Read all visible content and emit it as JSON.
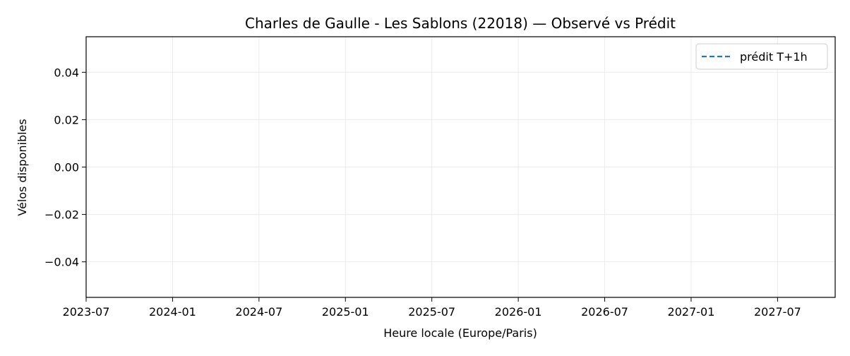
{
  "chart_data": {
    "type": "line",
    "title": "Charles de Gaulle - Les Sablons (22018) — Observé vs Prédit",
    "xlabel": "Heure locale (Europe/Paris)",
    "ylabel": "Vélos disponibles",
    "x_ticks": [
      "2023-07",
      "2024-01",
      "2024-07",
      "2025-01",
      "2025-07",
      "2026-01",
      "2026-07",
      "2027-01",
      "2027-07"
    ],
    "xlim": [
      "2023-07",
      "2027-11"
    ],
    "y_ticks": [
      "0.04",
      "0.02",
      "0.00",
      "−0.02",
      "−0.04"
    ],
    "y_tick_values": [
      0.04,
      0.02,
      0.0,
      -0.02,
      -0.04
    ],
    "ylim": [
      -0.055,
      0.055
    ],
    "grid": true,
    "legend_position": "top-right",
    "series": [
      {
        "name": "prédit T+1h",
        "style": "dashed",
        "color": "#1f77b4",
        "x": [],
        "y": []
      }
    ]
  }
}
